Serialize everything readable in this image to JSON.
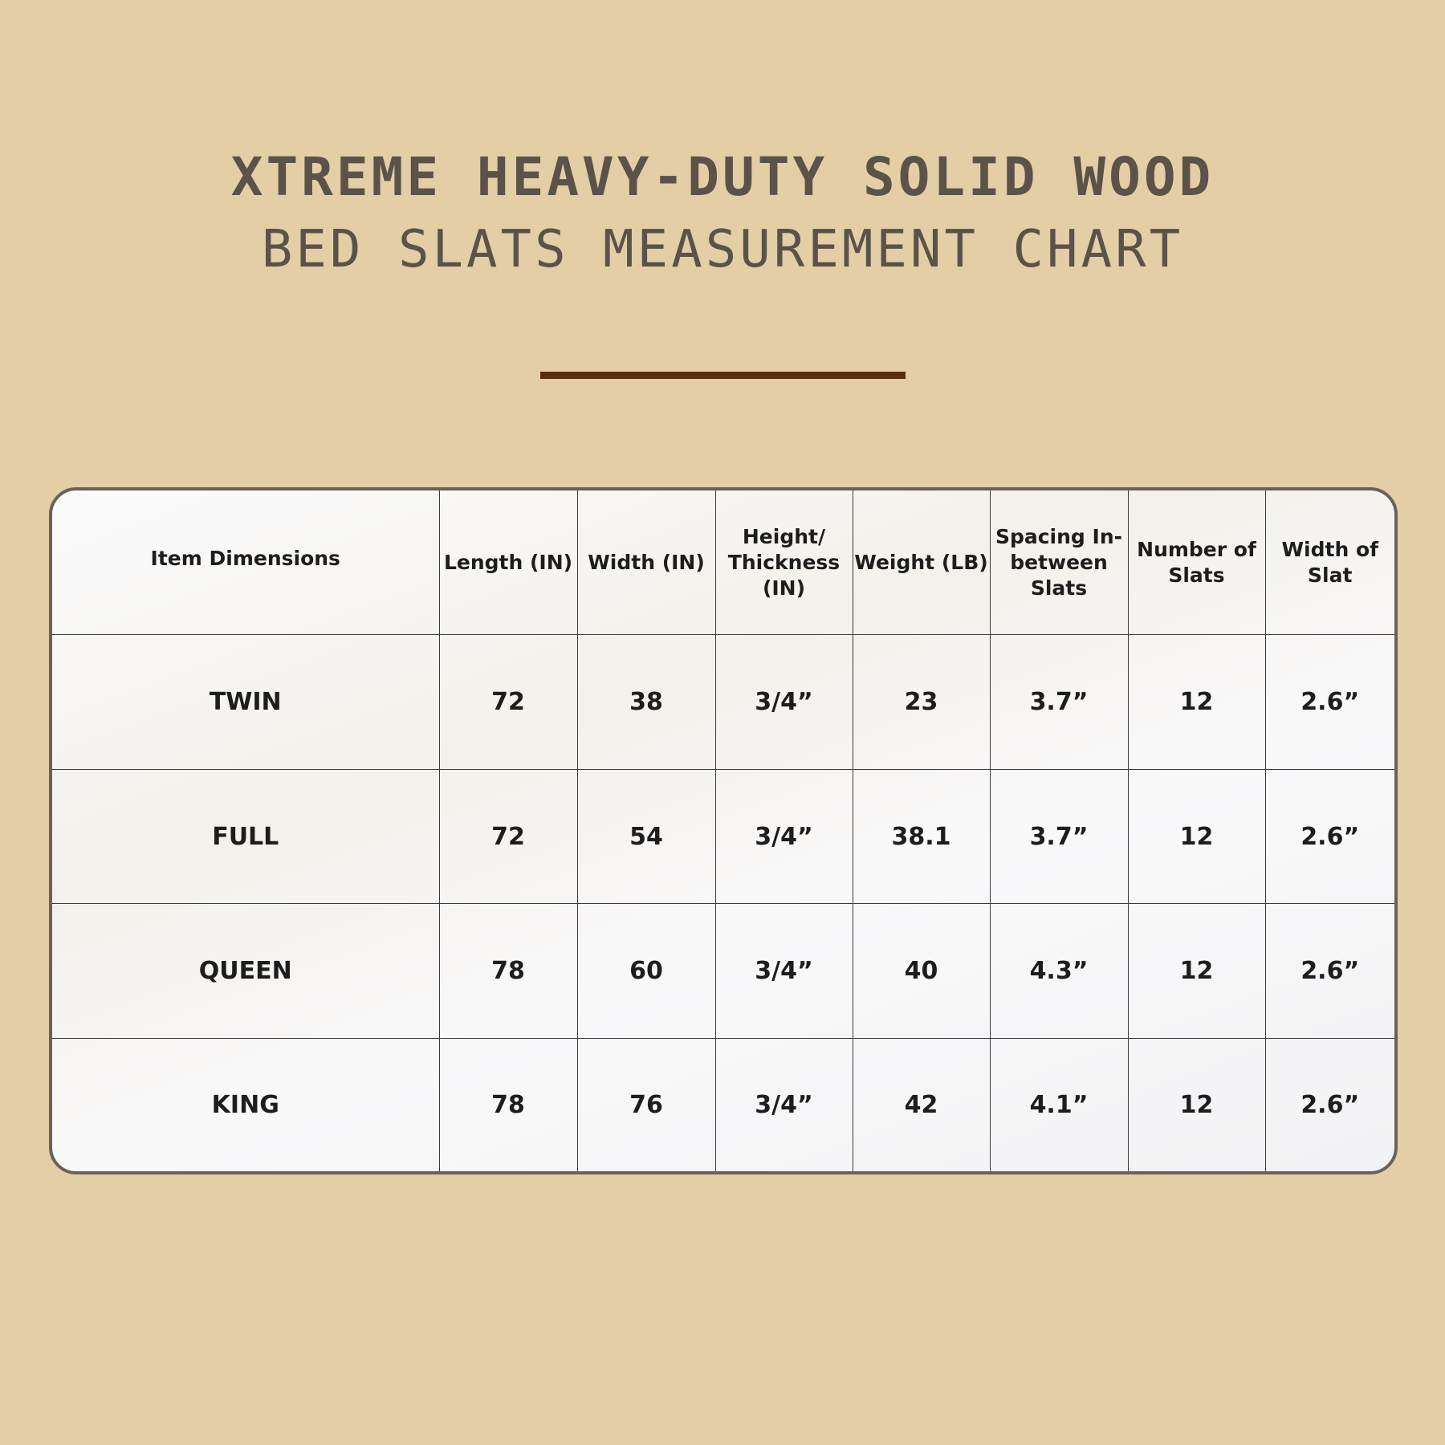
{
  "title": {
    "line1": "XTREME HEAVY-DUTY SOLID WOOD",
    "line2": "BED SLATS MEASUREMENT CHART"
  },
  "colors": {
    "background": "#e3cea5",
    "title": "#5b524a",
    "divider": "#5a2f10",
    "border": "#6a625a"
  },
  "table": {
    "headers": [
      "Item Dimensions",
      "Length (IN)",
      "Width (IN)",
      "Height/ Thickness (IN)",
      "Weight (LB)",
      "Spacing In-between Slats",
      "Number of Slats",
      "Width of Slat"
    ],
    "rows": [
      [
        "TWIN",
        "72",
        "38",
        "3/4”",
        "23",
        "3.7”",
        "12",
        "2.6”"
      ],
      [
        "FULL",
        "72",
        "54",
        "3/4”",
        "38.1",
        "3.7”",
        "12",
        "2.6”"
      ],
      [
        "QUEEN",
        "78",
        "60",
        "3/4”",
        "40",
        "4.3”",
        "12",
        "2.6”"
      ],
      [
        "KING",
        "78",
        "76",
        "3/4”",
        "42",
        "4.1”",
        "12",
        "2.6”"
      ]
    ]
  }
}
